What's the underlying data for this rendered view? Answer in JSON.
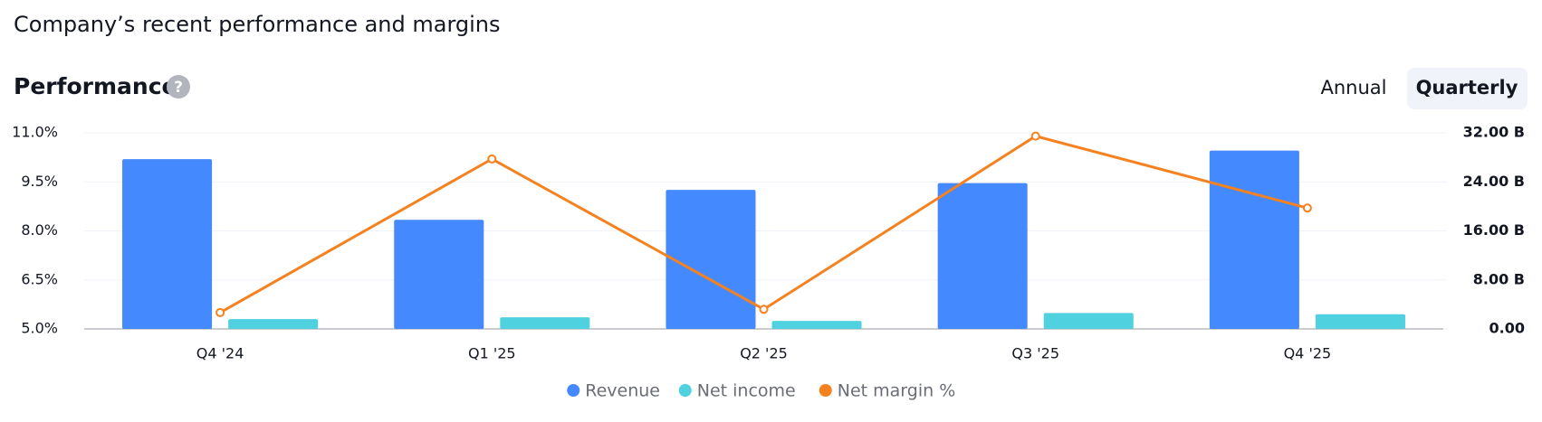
{
  "page_title": "Company’s recent performance and margins",
  "section_title": "Performance",
  "help_icon": "?",
  "tabs": [
    "Annual",
    "Quarterly"
  ],
  "active_tab": 1,
  "chart_data": {
    "type": "bar",
    "categories": [
      "Q4 '24",
      "Q1 '25",
      "Q2 '25",
      "Q3 '25",
      "Q4 '25"
    ],
    "series": [
      {
        "name": "Revenue",
        "color": "#4589ff",
        "axis": "y2",
        "type": "bar",
        "values": [
          27.7,
          17.8,
          22.7,
          23.8,
          29.1
        ]
      },
      {
        "name": "Net income",
        "color": "#4fd1e0",
        "axis": "y2",
        "type": "bar",
        "values": [
          1.6,
          1.9,
          1.3,
          2.6,
          2.4
        ]
      },
      {
        "name": "Net margin %",
        "color": "#f5821f",
        "axis": "y",
        "type": "line",
        "values": [
          5.5,
          10.2,
          5.6,
          10.9,
          8.7
        ]
      }
    ],
    "ylim": [
      5,
      11
    ],
    "yticks": [
      {
        "value": 5,
        "label": "5.0%"
      },
      {
        "value": 6.5,
        "label": "6.5%"
      },
      {
        "value": 8,
        "label": "8.0%"
      },
      {
        "value": 9.5,
        "label": "9.5%"
      },
      {
        "value": 11,
        "label": "11.0%"
      }
    ],
    "y2lim": [
      0,
      32
    ],
    "y2ticks": [
      {
        "value": 0,
        "label": "0.00"
      },
      {
        "value": 8,
        "label": "8.00 B"
      },
      {
        "value": 16,
        "label": "16.00 B"
      },
      {
        "value": 24,
        "label": "24.00 B"
      },
      {
        "value": 32,
        "label": "32.00 B"
      }
    ],
    "grid": true,
    "legend": "bottom"
  }
}
